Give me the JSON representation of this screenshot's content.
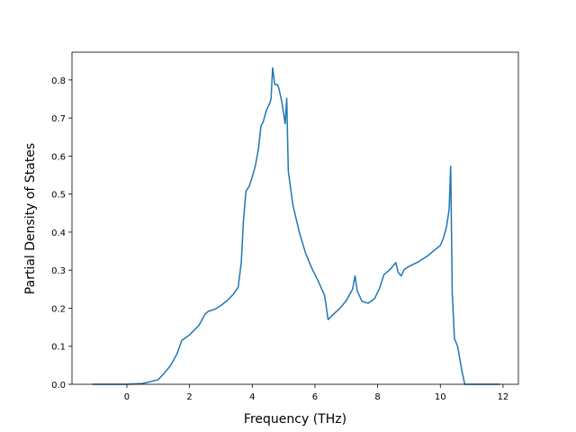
{
  "chart_data": {
    "type": "line",
    "x_label": "Frequency (THz)",
    "y_label": "Partial Density of States",
    "x": [
      -1.1,
      0,
      0.5,
      1.0,
      1.2,
      1.4,
      1.6,
      1.75,
      2.0,
      2.3,
      2.5,
      2.6,
      2.8,
      3.0,
      3.2,
      3.4,
      3.55,
      3.65,
      3.72,
      3.8,
      3.9,
      4.0,
      4.1,
      4.2,
      4.28,
      4.35,
      4.45,
      4.55,
      4.6,
      4.65,
      4.72,
      4.8,
      4.85,
      4.95,
      5.05,
      5.1,
      5.15,
      5.3,
      5.5,
      5.7,
      5.9,
      6.1,
      6.3,
      6.35,
      6.42,
      6.6,
      6.8,
      7.0,
      7.2,
      7.28,
      7.35,
      7.5,
      7.7,
      7.9,
      8.05,
      8.2,
      8.4,
      8.58,
      8.65,
      8.75,
      8.85,
      9.0,
      9.3,
      9.6,
      9.85,
      10.0,
      10.1,
      10.2,
      10.28,
      10.33,
      10.38,
      10.45,
      10.55,
      10.7,
      10.78,
      11.9
    ],
    "values": [
      0,
      0,
      0.002,
      0.012,
      0.03,
      0.05,
      0.08,
      0.115,
      0.13,
      0.155,
      0.185,
      0.192,
      0.197,
      0.207,
      0.22,
      0.237,
      0.255,
      0.32,
      0.43,
      0.508,
      0.52,
      0.545,
      0.575,
      0.62,
      0.68,
      0.69,
      0.72,
      0.737,
      0.75,
      0.832,
      0.788,
      0.788,
      0.778,
      0.74,
      0.685,
      0.752,
      0.56,
      0.47,
      0.4,
      0.345,
      0.305,
      0.272,
      0.235,
      0.21,
      0.17,
      0.185,
      0.2,
      0.22,
      0.25,
      0.285,
      0.245,
      0.218,
      0.213,
      0.225,
      0.25,
      0.288,
      0.302,
      0.32,
      0.295,
      0.285,
      0.302,
      0.31,
      0.322,
      0.338,
      0.355,
      0.365,
      0.385,
      0.415,
      0.46,
      0.573,
      0.24,
      0.12,
      0.1,
      0.03,
      0,
      0
    ],
    "color": "#1f77b4",
    "xlim": [
      -1.75,
      12.49
    ],
    "ylim": [
      0,
      0.873
    ],
    "xticks": [
      0,
      2,
      4,
      6,
      8,
      10,
      12
    ],
    "yticks": [
      {
        "value": 0,
        "label": "0.0"
      },
      0.1,
      0.2,
      0.3,
      0.4,
      0.5,
      0.6,
      0.7,
      0.8
    ]
  }
}
